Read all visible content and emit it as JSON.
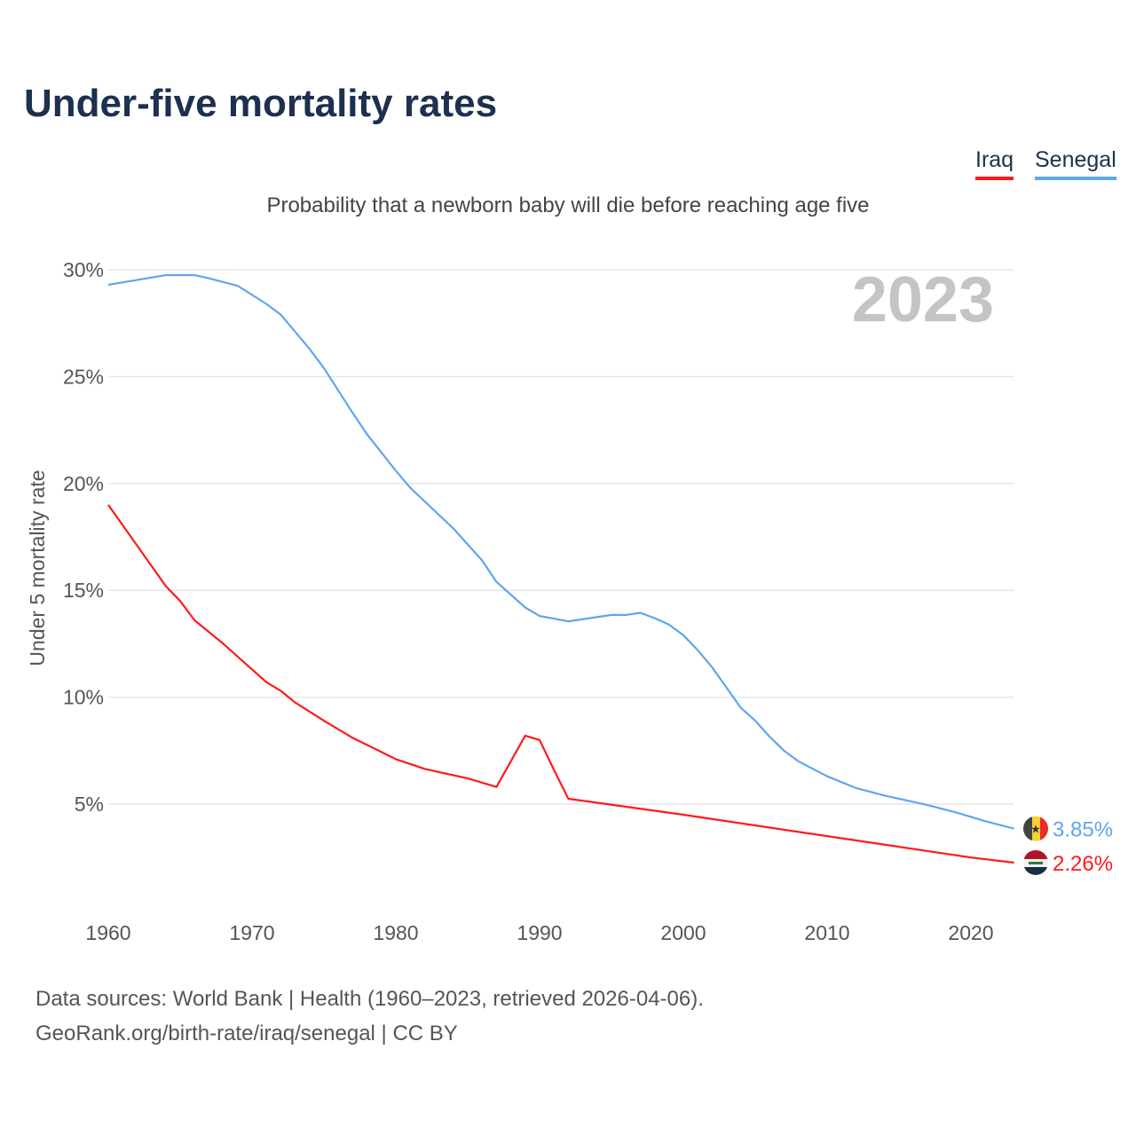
{
  "chart_data": {
    "type": "line",
    "title": "Under-five mortality rates",
    "subtitle": "Probability that a newborn baby will die before reaching age five",
    "ylabel": "Under 5 mortality rate",
    "xlabel": "",
    "year_label": "2023",
    "xlim": [
      1960,
      2023
    ],
    "ylim": [
      0,
      30
    ],
    "x_ticks": [
      "1960",
      "1970",
      "1980",
      "1990",
      "2000",
      "2010",
      "2020"
    ],
    "y_ticks": [
      {
        "v": 5,
        "label": "5%"
      },
      {
        "v": 10,
        "label": "10%"
      },
      {
        "v": 15,
        "label": "15%"
      },
      {
        "v": 20,
        "label": "20%"
      },
      {
        "v": 25,
        "label": "25%"
      },
      {
        "v": 30,
        "label": "30%"
      }
    ],
    "grid": true,
    "legend_position": "top-right",
    "series": [
      {
        "name": "Iraq",
        "color": "#ff1a1a",
        "end_label": "2.26%",
        "points": [
          [
            1960,
            19.0
          ],
          [
            1962,
            17.1
          ],
          [
            1964,
            15.2
          ],
          [
            1965,
            14.5
          ],
          [
            1966,
            13.6
          ],
          [
            1968,
            12.5
          ],
          [
            1970,
            11.3
          ],
          [
            1971,
            10.7
          ],
          [
            1972,
            10.3
          ],
          [
            1973,
            9.75
          ],
          [
            1975,
            8.9
          ],
          [
            1977,
            8.1
          ],
          [
            1980,
            7.1
          ],
          [
            1982,
            6.65
          ],
          [
            1985,
            6.2
          ],
          [
            1987,
            5.8
          ],
          [
            1989,
            8.2
          ],
          [
            1990,
            8.0
          ],
          [
            1991,
            6.6
          ],
          [
            1992,
            5.25
          ],
          [
            2000,
            4.5
          ],
          [
            2010,
            3.5
          ],
          [
            2020,
            2.5
          ],
          [
            2023,
            2.26
          ]
        ]
      },
      {
        "name": "Senegal",
        "color": "#5ea6ee",
        "end_label": "3.85%",
        "points": [
          [
            1960,
            29.3
          ],
          [
            1964,
            29.75
          ],
          [
            1966,
            29.75
          ],
          [
            1967,
            29.6
          ],
          [
            1969,
            29.25
          ],
          [
            1971,
            28.4
          ],
          [
            1972,
            27.9
          ],
          [
            1974,
            26.3
          ],
          [
            1975,
            25.4
          ],
          [
            1977,
            23.3
          ],
          [
            1978,
            22.3
          ],
          [
            1980,
            20.6
          ],
          [
            1981,
            19.8
          ],
          [
            1984,
            17.9
          ],
          [
            1986,
            16.4
          ],
          [
            1987,
            15.4
          ],
          [
            1989,
            14.2
          ],
          [
            1990,
            13.8
          ],
          [
            1992,
            13.55
          ],
          [
            1995,
            13.85
          ],
          [
            1996,
            13.85
          ],
          [
            1997,
            13.95
          ],
          [
            1998,
            13.7
          ],
          [
            1999,
            13.4
          ],
          [
            2000,
            12.9
          ],
          [
            2001,
            12.2
          ],
          [
            2002,
            11.4
          ],
          [
            2004,
            9.5
          ],
          [
            2005,
            8.9
          ],
          [
            2006,
            8.15
          ],
          [
            2007,
            7.5
          ],
          [
            2008,
            7.0
          ],
          [
            2010,
            6.3
          ],
          [
            2012,
            5.75
          ],
          [
            2014,
            5.4
          ],
          [
            2017,
            4.95
          ],
          [
            2019,
            4.6
          ],
          [
            2021,
            4.2
          ],
          [
            2023,
            3.85
          ]
        ]
      }
    ]
  },
  "footer": {
    "line1": "Data sources: World Bank | Health (1960–2023, retrieved 2026-04-06).",
    "line2": "GeoRank.org/birth-rate/iraq/senegal | CC BY"
  }
}
